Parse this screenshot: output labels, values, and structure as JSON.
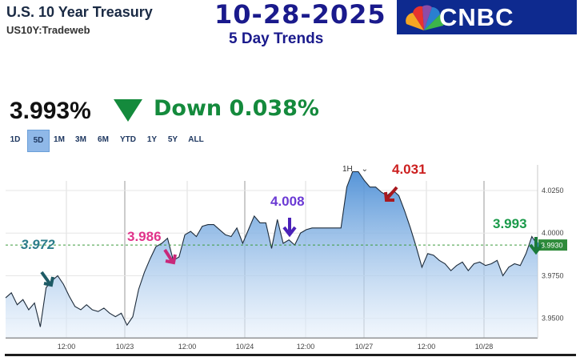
{
  "header": {
    "title": "U.S. 10 Year Treasury",
    "symbol": "US10Y:Tradeweb",
    "date": "10-28-2025",
    "subtitle": "5 Day Trends",
    "logo_text": "CNBC"
  },
  "quote": {
    "price": "3.993%",
    "change_label": "Down 0.038%",
    "direction": "down",
    "down_color": "#148a3c"
  },
  "ranges": [
    "1D",
    "5D",
    "1M",
    "3M",
    "6M",
    "YTD",
    "1Y",
    "5Y",
    "ALL"
  ],
  "active_range": "5D",
  "interval": "1H",
  "annotations": {
    "a1": "3.972",
    "a2": "3.986",
    "a3": "4.008",
    "a4": "4.031",
    "a5": "3.993"
  },
  "chart_data": {
    "type": "area",
    "x_tick_labels": [
      "12:00",
      "10/23",
      "12:00",
      "10/24",
      "12:00",
      "10/27",
      "12:00",
      "10/28"
    ],
    "y_tick_labels": [
      "3.9500",
      "3.9750",
      "4.0000",
      "4.0250"
    ],
    "ylim": [
      3.94,
      4.04
    ],
    "last_value_label": "3.9930",
    "reference_line": 3.993,
    "series": [
      {
        "values": [
          3.962,
          3.965,
          3.958,
          3.961,
          3.955,
          3.959,
          3.945,
          3.968,
          3.972,
          3.975,
          3.97,
          3.963,
          3.957,
          3.955,
          3.958,
          3.955,
          3.954,
          3.956,
          3.953,
          3.951,
          3.953,
          3.946,
          3.951,
          3.967,
          3.977,
          3.985,
          3.992,
          3.994,
          3.997,
          3.984,
          3.986,
          3.999,
          4.001,
          3.998,
          4.004,
          4.005,
          4.005,
          4.002,
          3.999,
          3.998,
          4.003,
          3.994,
          4.002,
          4.01,
          4.006,
          4.006,
          3.991,
          4.008,
          3.994,
          3.996,
          3.993,
          4.0,
          4.002,
          4.003,
          4.003,
          4.003,
          4.003,
          4.003,
          4.003,
          4.027,
          4.036,
          4.036,
          4.031,
          4.027,
          4.027,
          4.024,
          4.022,
          4.025,
          4.022,
          4.013,
          4.003,
          3.992,
          3.98,
          3.988,
          3.987,
          3.984,
          3.982,
          3.978,
          3.981,
          3.983,
          3.978,
          3.982,
          3.983,
          3.981,
          3.982,
          3.984,
          3.975,
          3.98,
          3.982,
          3.981,
          3.988,
          3.998,
          3.993
        ]
      }
    ]
  }
}
